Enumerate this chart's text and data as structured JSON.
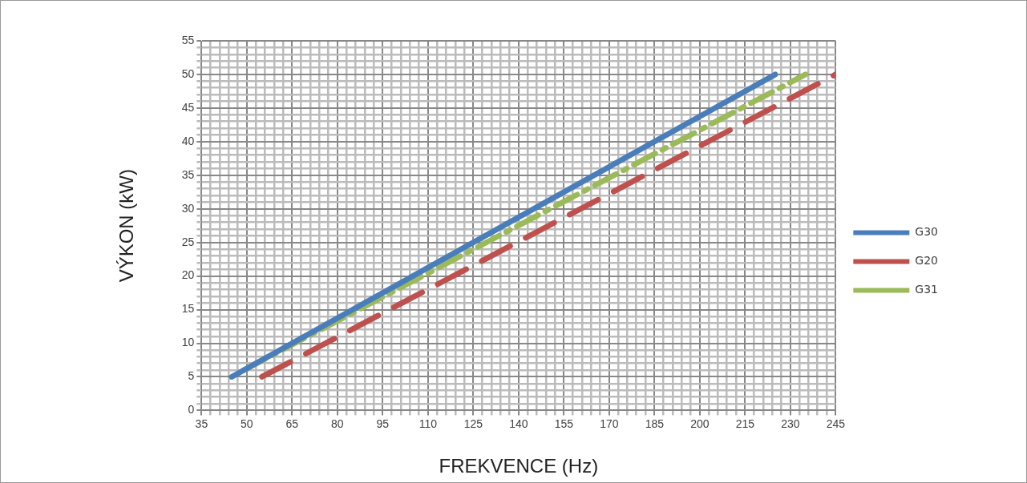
{
  "chart_data": {
    "type": "line",
    "xlabel": "FREKVENCE (Hz)",
    "ylabel": "VÝKON (kW)",
    "series": [
      {
        "name": "G30",
        "color": "#4a7ebb",
        "line_style": "solid",
        "x": [
          45,
          225
        ],
        "values": [
          5,
          50
        ]
      },
      {
        "name": "G20",
        "color": "#c0504d",
        "line_style": "dashed",
        "x": [
          55,
          245
        ],
        "values": [
          5,
          50
        ]
      },
      {
        "name": "G31",
        "color": "#9bbb59",
        "line_style": "dashdot",
        "x": [
          49,
          235
        ],
        "values": [
          6,
          50
        ]
      }
    ],
    "xlim": [
      35,
      245
    ],
    "ylim": [
      0,
      55
    ],
    "xticks": [
      35,
      {
        "value": 38,
        "label": null
      },
      {
        "value": 41,
        "label": null
      },
      {
        "value": 44,
        "label": null
      },
      {
        "value": 47,
        "label": null
      },
      50,
      {
        "value": 53,
        "label": null
      },
      {
        "value": 56,
        "label": null
      },
      {
        "value": 59,
        "label": null
      },
      {
        "value": 62,
        "label": null
      },
      65,
      {
        "value": 68,
        "label": null
      },
      {
        "value": 71,
        "label": null
      },
      {
        "value": 74,
        "label": null
      },
      {
        "value": 77,
        "label": null
      },
      80,
      {
        "value": 83,
        "label": null
      },
      {
        "value": 86,
        "label": null
      },
      {
        "value": 89,
        "label": null
      },
      {
        "value": 92,
        "label": null
      },
      95,
      {
        "value": 98,
        "label": null
      },
      {
        "value": 101,
        "label": null
      },
      {
        "value": 104,
        "label": null
      },
      {
        "value": 107,
        "label": null
      },
      110,
      {
        "value": 113,
        "label": null
      },
      {
        "value": 116,
        "label": null
      },
      {
        "value": 119,
        "label": null
      },
      {
        "value": 122,
        "label": null
      },
      125,
      {
        "value": 128,
        "label": null
      },
      {
        "value": 131,
        "label": null
      },
      {
        "value": 134,
        "label": null
      },
      {
        "value": 137,
        "label": null
      },
      140,
      {
        "value": 143,
        "label": null
      },
      {
        "value": 146,
        "label": null
      },
      {
        "value": 149,
        "label": null
      },
      {
        "value": 152,
        "label": null
      },
      155,
      {
        "value": 158,
        "label": null
      },
      {
        "value": 161,
        "label": null
      },
      {
        "value": 164,
        "label": null
      },
      {
        "value": 167,
        "label": null
      },
      170,
      {
        "value": 173,
        "label": null
      },
      {
        "value": 176,
        "label": null
      },
      {
        "value": 179,
        "label": null
      },
      {
        "value": 182,
        "label": null
      },
      185,
      {
        "value": 188,
        "label": null
      },
      {
        "value": 191,
        "label": null
      },
      {
        "value": 194,
        "label": null
      },
      {
        "value": 197,
        "label": null
      },
      200,
      {
        "value": 203,
        "label": null
      },
      {
        "value": 206,
        "label": null
      },
      {
        "value": 209,
        "label": null
      },
      {
        "value": 212,
        "label": null
      },
      215,
      {
        "value": 218,
        "label": null
      },
      {
        "value": 221,
        "label": null
      },
      {
        "value": 224,
        "label": null
      },
      {
        "value": 227,
        "label": null
      },
      230,
      {
        "value": 233,
        "label": null
      },
      {
        "value": 236,
        "label": null
      },
      {
        "value": 239,
        "label": null
      },
      {
        "value": 242,
        "label": null
      },
      245
    ],
    "yticks": [
      0,
      {
        "value": 1,
        "label": null
      },
      {
        "value": 2,
        "label": null
      },
      {
        "value": 3,
        "label": null
      },
      {
        "value": 4,
        "label": null
      },
      5,
      {
        "value": 6,
        "label": null
      },
      {
        "value": 7,
        "label": null
      },
      {
        "value": 8,
        "label": null
      },
      {
        "value": 9,
        "label": null
      },
      10,
      {
        "value": 11,
        "label": null
      },
      {
        "value": 12,
        "label": null
      },
      {
        "value": 13,
        "label": null
      },
      {
        "value": 14,
        "label": null
      },
      15,
      {
        "value": 16,
        "label": null
      },
      {
        "value": 17,
        "label": null
      },
      {
        "value": 18,
        "label": null
      },
      {
        "value": 19,
        "label": null
      },
      20,
      {
        "value": 21,
        "label": null
      },
      {
        "value": 22,
        "label": null
      },
      {
        "value": 23,
        "label": null
      },
      {
        "value": 24,
        "label": null
      },
      25,
      {
        "value": 26,
        "label": null
      },
      {
        "value": 27,
        "label": null
      },
      {
        "value": 28,
        "label": null
      },
      {
        "value": 29,
        "label": null
      },
      30,
      {
        "value": 31,
        "label": null
      },
      {
        "value": 32,
        "label": null
      },
      {
        "value": 33,
        "label": null
      },
      {
        "value": 34,
        "label": null
      },
      35,
      {
        "value": 36,
        "label": null
      },
      {
        "value": 37,
        "label": null
      },
      {
        "value": 38,
        "label": null
      },
      {
        "value": 39,
        "label": null
      },
      40,
      {
        "value": 41,
        "label": null
      },
      {
        "value": 42,
        "label": null
      },
      {
        "value": 43,
        "label": null
      },
      {
        "value": 44,
        "label": null
      },
      45,
      {
        "value": 46,
        "label": null
      },
      {
        "value": 47,
        "label": null
      },
      {
        "value": 48,
        "label": null
      },
      {
        "value": 49,
        "label": null
      },
      50,
      {
        "value": 51,
        "label": null
      },
      {
        "value": 52,
        "label": null
      },
      {
        "value": 53,
        "label": null
      },
      {
        "value": 54,
        "label": null
      },
      55
    ],
    "grid": true,
    "legend": "right",
    "marker": "none"
  }
}
